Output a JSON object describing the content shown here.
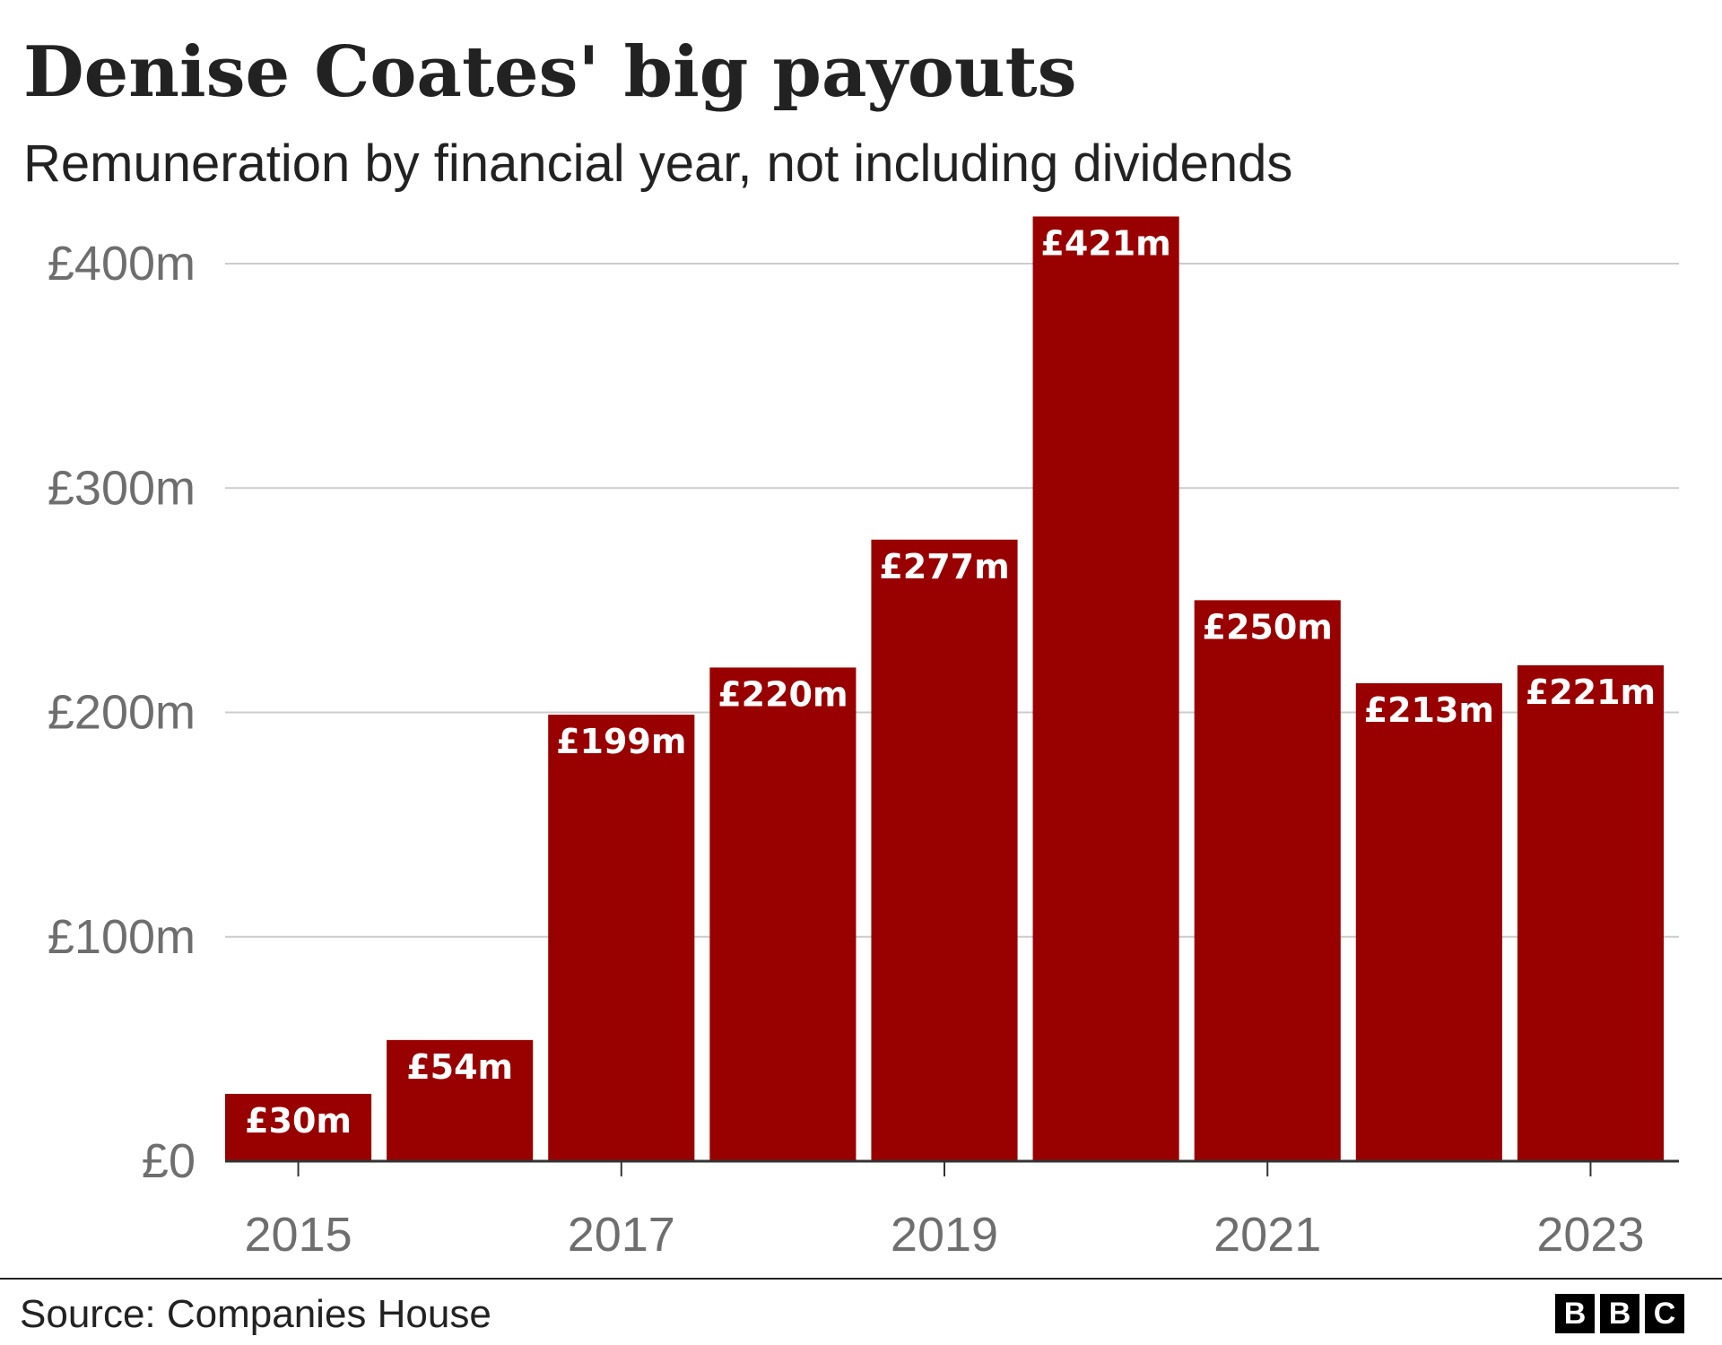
{
  "header": {
    "title": "Denise Coates' big payouts",
    "subtitle": "Remuneration by financial year, not including dividends"
  },
  "footer": {
    "source": "Source: Companies House",
    "logo_letters": [
      "B",
      "B",
      "C"
    ]
  },
  "colors": {
    "bar": "#990000",
    "bar_label": "#ffffff",
    "grid": "#cccccc",
    "axis_text": "#6e6e6e",
    "text": "#222222"
  },
  "chart_data": {
    "type": "bar",
    "title": "Denise Coates' big payouts",
    "subtitle": "Remuneration by financial year, not including dividends",
    "categories": [
      "2015",
      "2016",
      "2017",
      "2018",
      "2019",
      "2020",
      "2021",
      "2022",
      "2023"
    ],
    "values": [
      30,
      54,
      199,
      220,
      277,
      421,
      250,
      213,
      221
    ],
    "value_labels": [
      "£30m",
      "£54m",
      "£199m",
      "£220m",
      "£277m",
      "£421m",
      "£250m",
      "£213m",
      "£221m"
    ],
    "x_tick_labels": [
      "2015",
      "2017",
      "2019",
      "2021",
      "2023"
    ],
    "y_ticks": [
      0,
      100,
      200,
      300,
      400
    ],
    "y_tick_labels": [
      "£0",
      "£100m",
      "£200m",
      "£300m",
      "£400m"
    ],
    "ylim": [
      0,
      421
    ],
    "xlabel": "",
    "ylabel": "",
    "grid": true,
    "legend": false
  }
}
